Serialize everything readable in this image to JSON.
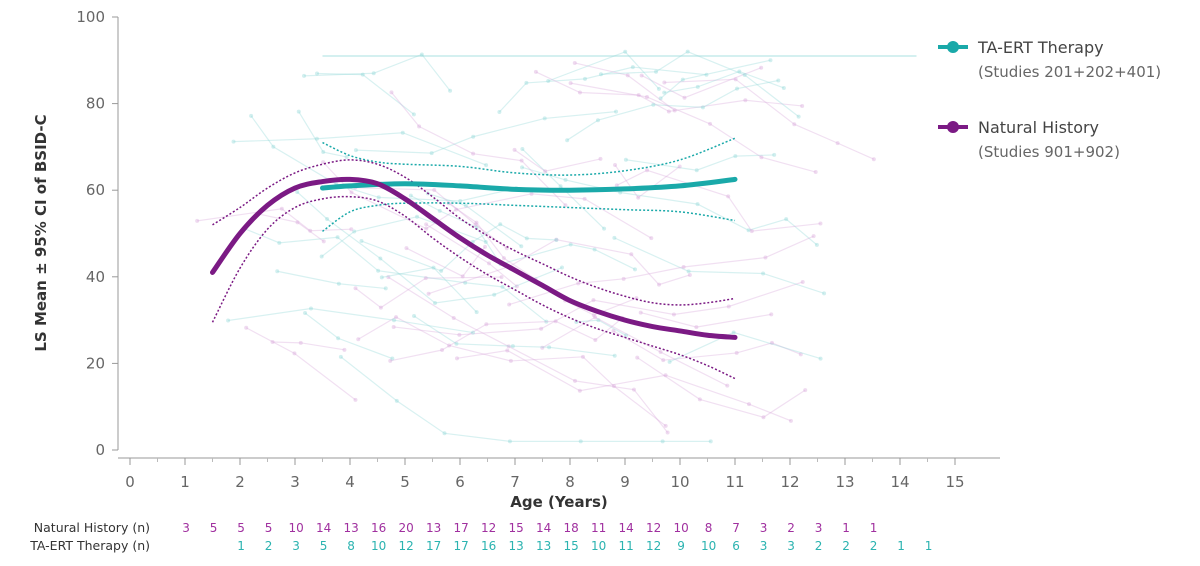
{
  "chart_data": {
    "type": "line",
    "title": "",
    "xlabel": "Age (Years)",
    "ylabel": "LS Mean ± 95% CI of BSID-C",
    "xlim": [
      0,
      15
    ],
    "ylim": [
      0,
      100
    ],
    "xticks": [
      0,
      1,
      2,
      3,
      4,
      5,
      6,
      7,
      8,
      9,
      10,
      11,
      12,
      13,
      14,
      15
    ],
    "yticks": [
      0,
      20,
      40,
      60,
      80,
      100
    ],
    "grid": false,
    "legend_position": "top-right",
    "colors": {
      "ta_ert": "#1aa9a9",
      "natural_history": "#7b1a84"
    },
    "series": [
      {
        "name": "TA-ERT Therapy",
        "subtitle": "(Studies 201+202+401)",
        "mean": {
          "x": [
            3.5,
            4,
            5,
            6,
            7,
            8,
            9,
            10,
            11
          ],
          "y": [
            60.5,
            61,
            61.5,
            61,
            60.2,
            60,
            60.3,
            61,
            62.5
          ]
        },
        "ci_upper": {
          "x": [
            3.5,
            4,
            4.5,
            5,
            6,
            7,
            8,
            9,
            10,
            11
          ],
          "y": [
            71,
            68,
            66.5,
            66,
            65.5,
            64,
            63.5,
            64.5,
            67,
            72
          ]
        },
        "ci_lower": {
          "x": [
            3.5,
            4,
            4.5,
            5,
            6,
            7,
            8,
            9,
            10,
            11
          ],
          "y": [
            50.5,
            55,
            56.5,
            57,
            57,
            56.5,
            56,
            55.5,
            55,
            53
          ]
        }
      },
      {
        "name": "Natural History",
        "subtitle": "(Studies 901+902)",
        "mean": {
          "x": [
            1.5,
            2,
            2.5,
            3,
            3.5,
            4,
            4.5,
            5,
            5.5,
            6,
            6.5,
            7,
            7.5,
            8,
            8.5,
            9,
            9.5,
            10,
            10.5,
            11
          ],
          "y": [
            41,
            50,
            56.5,
            60.5,
            62,
            62.5,
            61.5,
            58,
            53.5,
            49,
            45,
            41.5,
            38,
            34.5,
            32,
            30,
            28.5,
            27.5,
            26.5,
            26
          ]
        },
        "ci_upper": {
          "x": [
            1.5,
            2,
            2.5,
            3,
            3.5,
            4,
            4.5,
            5,
            5.5,
            6,
            6.5,
            7,
            7.5,
            8,
            8.5,
            9,
            9.5,
            10,
            10.5,
            11
          ],
          "y": [
            52,
            56,
            60.5,
            64,
            66,
            67,
            66,
            63,
            58.5,
            53.5,
            49.5,
            46,
            43,
            40,
            37.5,
            35.5,
            34,
            33.5,
            34,
            35
          ]
        },
        "ci_lower": {
          "x": [
            1.5,
            2,
            2.5,
            3,
            3.5,
            4,
            4.5,
            5,
            5.5,
            6,
            6.5,
            7,
            7.5,
            8,
            8.5,
            9,
            9.5,
            10,
            10.5,
            11
          ],
          "y": [
            29.5,
            42,
            51,
            56,
            58,
            58.5,
            57.5,
            54,
            49,
            44.5,
            40.5,
            37,
            33.5,
            30.5,
            28,
            26,
            24,
            22,
            19.5,
            16.5
          ]
        }
      }
    ],
    "n_table": {
      "natural_history": {
        "label": "Natural History (n)",
        "start_age": 1,
        "step": 0.5,
        "values": [
          3,
          5,
          5,
          5,
          10,
          14,
          13,
          16,
          20,
          13,
          17,
          12,
          15,
          14,
          18,
          11,
          14,
          12,
          10,
          8,
          7,
          3,
          2,
          3,
          1,
          1
        ]
      },
      "ta_ert": {
        "label": "TA-ERT Therapy (n)",
        "start_age": 2,
        "step": 0.5,
        "values": [
          1,
          2,
          3,
          5,
          8,
          10,
          12,
          17,
          17,
          16,
          13,
          13,
          15,
          10,
          11,
          12,
          9,
          10,
          6,
          3,
          3,
          2,
          2,
          2,
          1,
          1
        ]
      }
    }
  }
}
